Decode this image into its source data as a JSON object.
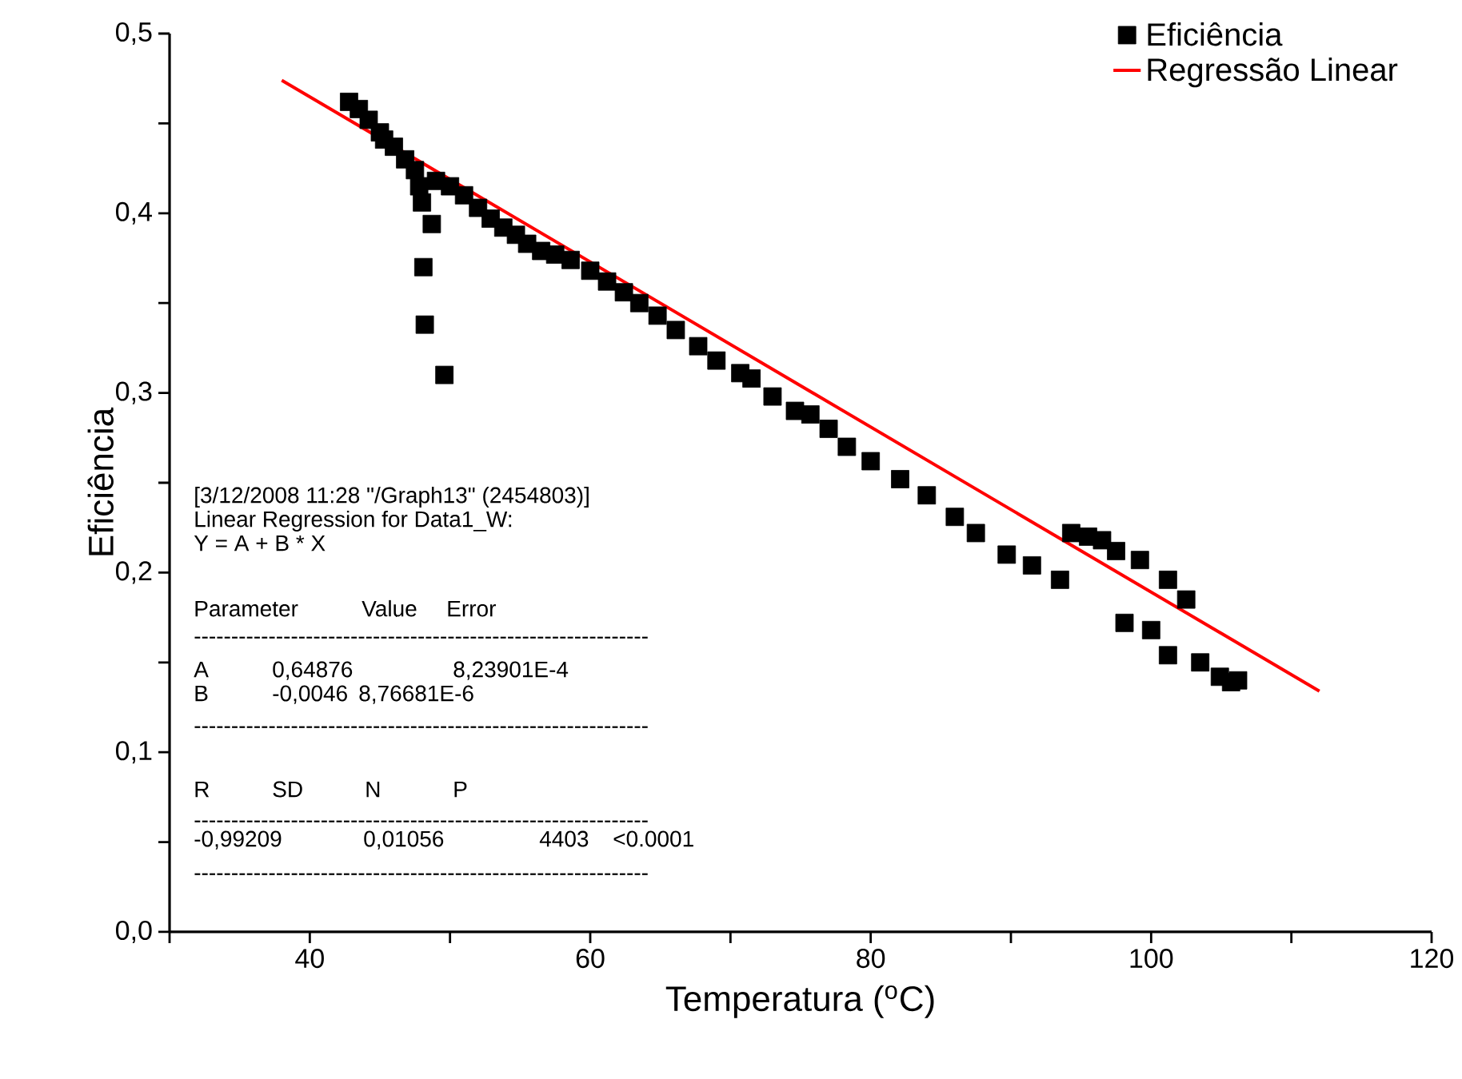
{
  "chart_data": {
    "type": "scatter",
    "xlabel": "Temperatura ($^{o}$C)",
    "ylabel": "Eficiência",
    "xlim": [
      30,
      120
    ],
    "ylim": [
      0,
      0.5
    ],
    "xticks": [
      {
        "value": 30,
        "label": null
      },
      40,
      {
        "value": 50,
        "label": null
      },
      60,
      {
        "value": 70,
        "label": null
      },
      80,
      {
        "value": 90,
        "label": null
      },
      100,
      {
        "value": 110,
        "label": null
      },
      120
    ],
    "yticks": [
      {
        "value": 0,
        "label": "0,0"
      },
      {
        "value": 0.05,
        "label": null
      },
      {
        "value": 0.1,
        "label": "0,1"
      },
      {
        "value": 0.15,
        "label": null
      },
      {
        "value": 0.2,
        "label": "0,2"
      },
      {
        "value": 0.25,
        "label": null
      },
      {
        "value": 0.3,
        "label": "0,3"
      },
      {
        "value": 0.35,
        "label": null
      },
      {
        "value": 0.4,
        "label": "0,4"
      },
      {
        "value": 0.45,
        "label": null
      },
      {
        "value": 0.5,
        "label": "0,5"
      }
    ],
    "legend": "top right",
    "grid": false,
    "series": [
      {
        "name": "Eficiência",
        "type": "scatter",
        "marker": "square",
        "color": "#000000",
        "x": [
          42.8,
          43.5,
          44.2,
          45.0,
          45.3,
          46.0,
          46.8,
          47.5,
          47.8,
          48.0,
          48.1,
          48.2,
          48.7,
          49.6,
          49.0,
          50.0,
          51.0,
          52.0,
          52.9,
          53.8,
          54.7,
          55.5,
          56.5,
          57.5,
          58.6,
          60.0,
          61.2,
          62.4,
          63.5,
          64.8,
          66.1,
          67.7,
          69.0,
          70.7,
          71.5,
          73.0,
          74.6,
          75.7,
          77.0,
          78.3,
          80.0,
          82.1,
          84.0,
          86.0,
          87.5,
          89.7,
          91.5,
          93.5,
          94.3,
          95.5,
          96.5,
          97.5,
          98.1,
          99.2,
          100.0,
          101.2,
          101.2,
          102.5,
          103.5,
          104.9,
          105.7,
          106.2
        ],
        "values": [
          0.462,
          0.458,
          0.452,
          0.445,
          0.441,
          0.437,
          0.43,
          0.424,
          0.415,
          0.406,
          0.37,
          0.338,
          0.394,
          0.31,
          0.418,
          0.415,
          0.41,
          0.403,
          0.397,
          0.392,
          0.388,
          0.383,
          0.379,
          0.377,
          0.374,
          0.368,
          0.362,
          0.356,
          0.35,
          0.343,
          0.335,
          0.326,
          0.318,
          0.311,
          0.308,
          0.298,
          0.29,
          0.288,
          0.28,
          0.27,
          0.262,
          0.252,
          0.243,
          0.231,
          0.222,
          0.21,
          0.204,
          0.196,
          0.222,
          0.22,
          0.218,
          0.212,
          0.172,
          0.207,
          0.168,
          0.196,
          0.154,
          0.185,
          0.15,
          0.142,
          0.139,
          0.14
        ]
      },
      {
        "name": "Regressão Linear",
        "type": "line",
        "marker": "none",
        "line_style": "solid",
        "color": "#ff0000",
        "x": [
          38,
          112
        ],
        "values": [
          0.474,
          0.134
        ]
      }
    ],
    "annotations": [
      "[3/12/2008 11:28 \"/Graph13\" (2454803)]",
      "Linear Regression for Data1_W:",
      "Y = A + B * X",
      "Parameter",
      "Value",
      "Error",
      "-------------------------------------------------------------",
      "A",
      "0,64876",
      "8,23901E-4",
      "B",
      "-0,0046",
      "8,76681E-6",
      "-------------------------------------------------------------",
      "R",
      "SD",
      "N",
      "P",
      "-------------------------------------------------------------",
      "-0,99209",
      "0,01056",
      "4403",
      "<0.0001",
      "-------------------------------------------------------------"
    ]
  }
}
